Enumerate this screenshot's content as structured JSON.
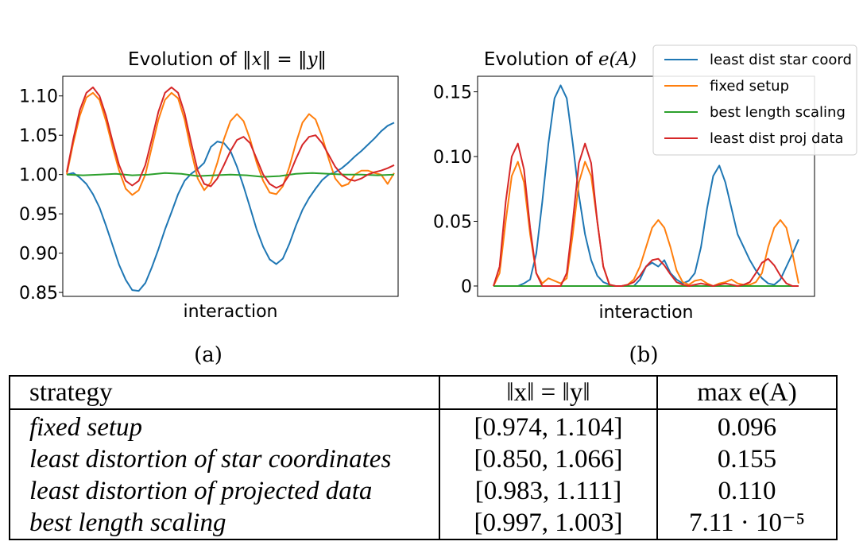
{
  "captions": {
    "a": "(a)",
    "b": "(b)"
  },
  "chart_data": [
    {
      "type": "line",
      "title_prefix": "Evolution of",
      "title_math": "‖x‖ = ‖y‖",
      "xlabel": "interaction",
      "ylabel": "",
      "xlim": [
        0,
        100
      ],
      "ylim": [
        0.845,
        1.125
      ],
      "yticks": [
        0.85,
        0.9,
        0.95,
        1.0,
        1.05,
        1.1
      ],
      "ytick_labels": [
        "0.85",
        "0.90",
        "0.95",
        "1.00",
        "1.05",
        "1.10"
      ],
      "xticks": [],
      "grid": false,
      "series": [
        {
          "name": "least dist star coord",
          "color": "#1f77b4",
          "x": [
            0,
            2,
            4,
            6,
            8,
            10,
            12,
            14,
            16,
            18,
            20,
            22,
            24,
            26,
            28,
            30,
            32,
            34,
            36,
            38,
            40,
            42,
            44,
            46,
            48,
            50,
            52,
            54,
            56,
            58,
            60,
            62,
            64,
            66,
            68,
            70,
            72,
            74,
            76,
            78,
            80,
            82,
            84,
            86,
            88,
            90,
            92,
            94,
            96,
            98,
            100
          ],
          "y": [
            1.0,
            1.002,
            0.996,
            0.988,
            0.975,
            0.958,
            0.935,
            0.91,
            0.885,
            0.866,
            0.853,
            0.852,
            0.862,
            0.882,
            0.905,
            0.93,
            0.952,
            0.975,
            0.992,
            1.001,
            1.007,
            1.015,
            1.035,
            1.042,
            1.04,
            1.03,
            1.01,
            0.985,
            0.958,
            0.93,
            0.908,
            0.892,
            0.886,
            0.893,
            0.912,
            0.935,
            0.955,
            0.97,
            0.982,
            0.993,
            1.0,
            1.003,
            1.008,
            1.015,
            1.023,
            1.03,
            1.038,
            1.046,
            1.055,
            1.062,
            1.066
          ]
        },
        {
          "name": "fixed setup",
          "color": "#ff7f0e",
          "x": [
            0,
            2,
            4,
            6,
            8,
            10,
            12,
            14,
            16,
            18,
            20,
            22,
            24,
            26,
            28,
            30,
            32,
            34,
            36,
            38,
            40,
            42,
            44,
            46,
            48,
            50,
            52,
            54,
            56,
            58,
            60,
            62,
            64,
            66,
            68,
            70,
            72,
            74,
            76,
            78,
            80,
            82,
            84,
            86,
            88,
            90,
            92,
            94,
            96,
            98,
            100
          ],
          "y": [
            1.0,
            1.04,
            1.075,
            1.098,
            1.104,
            1.095,
            1.068,
            1.035,
            1.005,
            0.982,
            0.974,
            0.98,
            1.0,
            1.035,
            1.07,
            1.095,
            1.104,
            1.097,
            1.07,
            1.03,
            0.995,
            0.98,
            0.99,
            1.015,
            1.045,
            1.068,
            1.077,
            1.068,
            1.045,
            1.015,
            0.992,
            0.977,
            0.975,
            0.985,
            1.01,
            1.04,
            1.066,
            1.077,
            1.07,
            1.048,
            1.02,
            0.995,
            0.985,
            0.988,
            1.0,
            1.005,
            1.005,
            1.002,
            1.0,
            0.988,
            1.002
          ]
        },
        {
          "name": "best length scaling",
          "color": "#2ca02c",
          "x": [
            0,
            5,
            10,
            15,
            20,
            25,
            30,
            35,
            40,
            45,
            50,
            55,
            60,
            65,
            70,
            75,
            80,
            85,
            90,
            95,
            100
          ],
          "y": [
            1.0,
            0.999,
            1.0,
            1.001,
            0.999,
            1.0,
            1.002,
            1.001,
            0.998,
            0.999,
            1.0,
            0.999,
            0.997,
            0.998,
            1.001,
            1.002,
            1.001,
            1.0,
            1.0,
            0.999,
            1.0
          ]
        },
        {
          "name": "least dist proj data",
          "color": "#d62728",
          "x": [
            0,
            2,
            4,
            6,
            8,
            10,
            12,
            14,
            16,
            18,
            20,
            22,
            24,
            26,
            28,
            30,
            32,
            34,
            36,
            38,
            40,
            42,
            44,
            46,
            48,
            50,
            52,
            54,
            56,
            58,
            60,
            62,
            64,
            66,
            68,
            70,
            72,
            74,
            76,
            78,
            80,
            82,
            84,
            86,
            88,
            90,
            92,
            94,
            96,
            98,
            100
          ],
          "y": [
            1.003,
            1.045,
            1.082,
            1.104,
            1.111,
            1.1,
            1.075,
            1.042,
            1.012,
            0.992,
            0.986,
            0.992,
            1.012,
            1.045,
            1.08,
            1.104,
            1.111,
            1.104,
            1.078,
            1.04,
            1.005,
            0.988,
            0.985,
            0.995,
            1.012,
            1.03,
            1.044,
            1.048,
            1.04,
            1.02,
            1.0,
            0.988,
            0.983,
            0.987,
            1.0,
            1.02,
            1.038,
            1.048,
            1.05,
            1.04,
            1.025,
            1.01,
            1.0,
            0.994,
            0.992,
            0.995,
            1.0,
            1.003,
            1.005,
            1.008,
            1.012
          ]
        }
      ]
    },
    {
      "type": "line",
      "title_prefix": "Evolution of",
      "title_math": "e(A)",
      "xlabel": "interaction",
      "ylabel": "",
      "xlim": [
        0,
        100
      ],
      "ylim": [
        -0.008,
        0.162
      ],
      "yticks": [
        0,
        0.05,
        0.1,
        0.15
      ],
      "ytick_labels": [
        "0",
        "0.05",
        "0.10",
        "0.15"
      ],
      "xticks": [],
      "grid": false,
      "legend_position": "top-right",
      "series": [
        {
          "name": "least dist star coord",
          "color": "#1f77b4",
          "x": [
            0,
            2,
            4,
            6,
            8,
            10,
            12,
            14,
            16,
            18,
            20,
            22,
            24,
            26,
            28,
            30,
            32,
            34,
            36,
            38,
            40,
            42,
            44,
            46,
            48,
            50,
            52,
            54,
            56,
            58,
            60,
            62,
            64,
            66,
            68,
            70,
            72,
            74,
            76,
            78,
            80,
            82,
            84,
            86,
            88,
            90,
            92,
            94,
            96,
            98,
            100
          ],
          "y": [
            0,
            0,
            0,
            0,
            0,
            0.002,
            0.005,
            0.025,
            0.065,
            0.11,
            0.145,
            0.155,
            0.145,
            0.11,
            0.07,
            0.04,
            0.02,
            0.008,
            0.003,
            0.001,
            0,
            0,
            0,
            0,
            0.005,
            0.015,
            0.018,
            0.015,
            0.02,
            0.01,
            0.005,
            0.002,
            0.004,
            0.01,
            0.03,
            0.06,
            0.085,
            0.093,
            0.08,
            0.06,
            0.04,
            0.03,
            0.02,
            0.012,
            0.006,
            0.002,
            0.001,
            0.005,
            0.015,
            0.025,
            0.036
          ]
        },
        {
          "name": "fixed setup",
          "color": "#ff7f0e",
          "x": [
            0,
            2,
            4,
            6,
            8,
            10,
            12,
            14,
            16,
            18,
            20,
            22,
            24,
            26,
            28,
            30,
            32,
            34,
            36,
            38,
            40,
            42,
            44,
            46,
            48,
            50,
            52,
            54,
            56,
            58,
            60,
            62,
            64,
            66,
            68,
            70,
            72,
            74,
            76,
            78,
            80,
            82,
            84,
            86,
            88,
            90,
            92,
            94,
            96,
            98,
            100
          ],
          "y": [
            0,
            0.01,
            0.05,
            0.085,
            0.096,
            0.08,
            0.04,
            0.01,
            0.002,
            0.006,
            0.004,
            0.002,
            0.006,
            0.04,
            0.08,
            0.096,
            0.085,
            0.05,
            0.015,
            0.001,
            0,
            0,
            0.001,
            0.005,
            0.015,
            0.03,
            0.045,
            0.051,
            0.045,
            0.03,
            0.012,
            0.003,
            0.001,
            0.004,
            0.005,
            0.002,
            0,
            0.002,
            0.003,
            0.005,
            0.002,
            0.001,
            0.001,
            0.003,
            0.01,
            0.03,
            0.045,
            0.051,
            0.045,
            0.025,
            0.002
          ]
        },
        {
          "name": "best length scaling",
          "color": "#2ca02c",
          "x": [
            0,
            50,
            100
          ],
          "y": [
            0,
            0,
            0
          ]
        },
        {
          "name": "least dist proj data",
          "color": "#d62728",
          "x": [
            0,
            2,
            4,
            6,
            8,
            10,
            12,
            14,
            16,
            18,
            20,
            22,
            24,
            26,
            28,
            30,
            32,
            34,
            36,
            38,
            40,
            42,
            44,
            46,
            48,
            50,
            52,
            54,
            56,
            58,
            60,
            62,
            64,
            66,
            68,
            70,
            72,
            74,
            76,
            78,
            80,
            82,
            84,
            86,
            88,
            90,
            92,
            94,
            96,
            98,
            100
          ],
          "y": [
            0,
            0.015,
            0.065,
            0.1,
            0.11,
            0.09,
            0.045,
            0.01,
            0,
            0,
            0,
            0,
            0.01,
            0.05,
            0.095,
            0.11,
            0.095,
            0.05,
            0.015,
            0.001,
            0,
            0,
            0.001,
            0.003,
            0.008,
            0.015,
            0.02,
            0.021,
            0.016,
            0.009,
            0.003,
            0.001,
            0,
            0.001,
            0.002,
            0.001,
            0,
            0.001,
            0.002,
            0.001,
            0,
            0.001,
            0.003,
            0.01,
            0.018,
            0.021,
            0.016,
            0.008,
            0.002,
            0,
            0
          ]
        }
      ]
    }
  ],
  "table": {
    "headers": [
      "strategy",
      "‖x‖ = ‖y‖",
      "max e(A)"
    ],
    "rows": [
      [
        "fixed setup",
        "[0.974, 1.104]",
        "0.096"
      ],
      [
        "least distortion of star coordinates",
        "[0.850, 1.066]",
        "0.155"
      ],
      [
        "least distortion of projected data",
        "[0.983, 1.111]",
        "0.110"
      ],
      [
        "best length scaling",
        "[0.997, 1.003]",
        "7.11 · 10⁻⁵"
      ]
    ]
  }
}
